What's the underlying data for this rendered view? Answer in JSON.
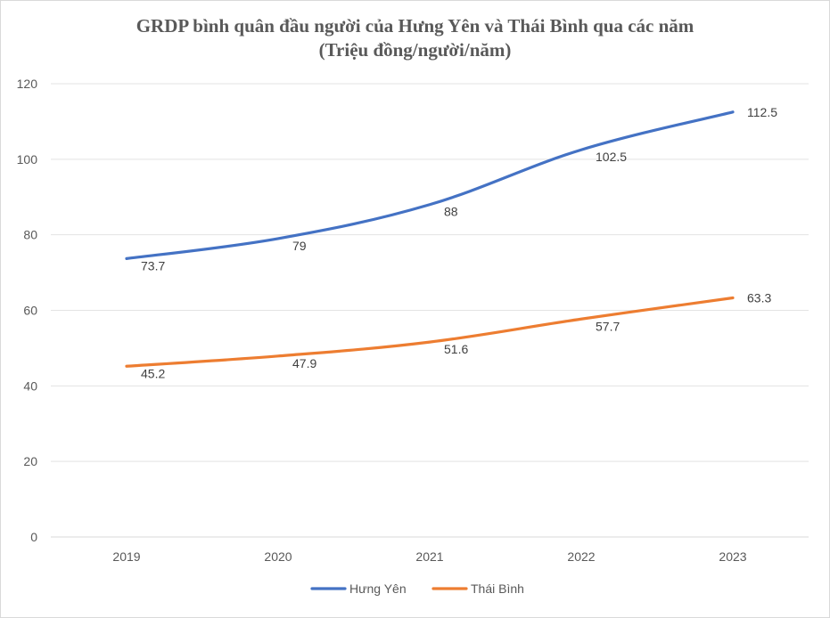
{
  "chart_data": {
    "type": "line",
    "title": "GRDP bình quân đầu người của Hưng Yên và Thái Bình qua các năm",
    "subtitle": "(Triệu đồng/người/năm)",
    "categories": [
      "2019",
      "2020",
      "2021",
      "2022",
      "2023"
    ],
    "yticks": [
      "0",
      "20",
      "40",
      "60",
      "80",
      "100",
      "120"
    ],
    "ylim": [
      0,
      120
    ],
    "grid": true,
    "legend_position": "bottom",
    "series": [
      {
        "name": "Hưng Yên",
        "color": "#4472c4",
        "values": [
          73.7,
          79,
          88,
          102.5,
          112.5
        ],
        "labels": [
          "73.7",
          "79",
          "88",
          "102.5",
          "112.5"
        ]
      },
      {
        "name": "Thái Bình",
        "color": "#ed7d31",
        "values": [
          45.2,
          47.9,
          51.6,
          57.7,
          63.3
        ],
        "labels": [
          "45.2",
          "47.9",
          "51.6",
          "57.7",
          "63.3"
        ]
      }
    ]
  }
}
